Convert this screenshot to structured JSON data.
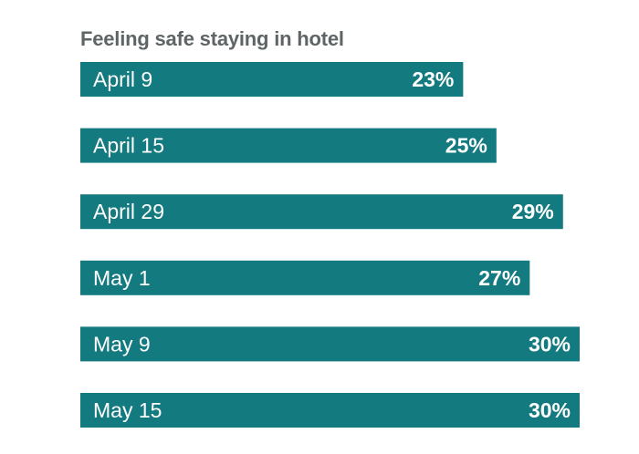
{
  "chart_data": {
    "type": "bar",
    "orientation": "horizontal",
    "title": "Feeling safe staying in hotel",
    "categories": [
      "April 9",
      "April 15",
      "April 29",
      "May 1",
      "May 9",
      "May 15"
    ],
    "values": [
      23,
      25,
      29,
      27,
      30,
      30
    ],
    "value_labels": [
      "23%",
      "25%",
      "29%",
      "27%",
      "30%",
      "30%"
    ],
    "unit": "%",
    "xlim": [
      0,
      30
    ],
    "grid": false,
    "legend": "none",
    "bar_color": "#137a80",
    "label_color": "#ffffff",
    "title_color": "#5f6566"
  }
}
